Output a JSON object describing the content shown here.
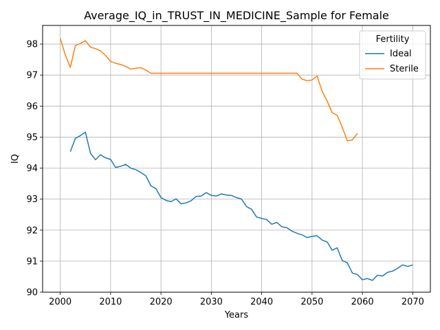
{
  "chart_data": {
    "type": "line",
    "title": "Average_IQ_in_TRUST_IN_MEDICINE_Sample for Female",
    "xlabel": "Years",
    "ylabel": "IQ",
    "xlim": [
      1996.5,
      2073.5
    ],
    "ylim": [
      90,
      98.6
    ],
    "x_ticks": [
      2000,
      2010,
      2020,
      2030,
      2040,
      2050,
      2060,
      2070
    ],
    "y_ticks": [
      90,
      91,
      92,
      93,
      94,
      95,
      96,
      97,
      98
    ],
    "grid": true,
    "legend": {
      "title": "Fertility",
      "placement": "top-right"
    },
    "series": [
      {
        "name": "Ideal",
        "color": "#1f77b4",
        "x": [
          2002,
          2003,
          2004,
          2005,
          2006,
          2007,
          2008,
          2009,
          2010,
          2011,
          2012,
          2013,
          2014,
          2015,
          2016,
          2017,
          2018,
          2019,
          2020,
          2021,
          2022,
          2023,
          2024,
          2025,
          2026,
          2027,
          2028,
          2029,
          2030,
          2031,
          2032,
          2033,
          2034,
          2035,
          2036,
          2037,
          2038,
          2039,
          2040,
          2041,
          2042,
          2043,
          2044,
          2045,
          2046,
          2047,
          2048,
          2049,
          2050,
          2051,
          2052,
          2053,
          2054,
          2055,
          2056,
          2057,
          2058,
          2059,
          2060,
          2061,
          2062,
          2063,
          2064,
          2065,
          2066,
          2067,
          2068,
          2069,
          2070
        ],
        "values": [
          94.53,
          94.96,
          95.05,
          95.16,
          94.48,
          94.27,
          94.43,
          94.33,
          94.28,
          94.02,
          94.06,
          94.12,
          94.0,
          93.95,
          93.86,
          93.75,
          93.43,
          93.34,
          93.05,
          92.96,
          92.92,
          93.01,
          92.85,
          92.88,
          92.95,
          93.09,
          93.1,
          93.21,
          93.12,
          93.1,
          93.17,
          93.13,
          93.12,
          93.05,
          93.0,
          92.76,
          92.67,
          92.42,
          92.38,
          92.34,
          92.19,
          92.25,
          92.11,
          92.08,
          91.97,
          91.9,
          91.85,
          91.76,
          91.8,
          91.82,
          91.68,
          91.62,
          91.35,
          91.43,
          91.02,
          90.95,
          90.62,
          90.57,
          90.4,
          90.44,
          90.38,
          90.55,
          90.52,
          90.64,
          90.68,
          90.77,
          90.88,
          90.83,
          90.88
        ]
      },
      {
        "name": "Sterile",
        "color": "#ff7f0e",
        "x": [
          2000,
          2001,
          2002,
          2003,
          2004,
          2005,
          2006,
          2007,
          2008,
          2009,
          2010,
          2011,
          2012,
          2013,
          2014,
          2015,
          2016,
          2017,
          2018,
          2019,
          2020,
          2021,
          2022,
          2023,
          2024,
          2025,
          2026,
          2027,
          2028,
          2029,
          2030,
          2031,
          2032,
          2033,
          2034,
          2035,
          2036,
          2037,
          2038,
          2039,
          2040,
          2041,
          2042,
          2043,
          2044,
          2045,
          2046,
          2047,
          2048,
          2049,
          2050,
          2051,
          2052,
          2053,
          2054,
          2055,
          2056,
          2057,
          2058,
          2059
        ],
        "values": [
          98.18,
          97.65,
          97.25,
          97.95,
          98.02,
          98.11,
          97.9,
          97.85,
          97.78,
          97.63,
          97.44,
          97.38,
          97.34,
          97.28,
          97.19,
          97.22,
          97.24,
          97.16,
          97.06,
          97.06,
          97.06,
          97.06,
          97.06,
          97.06,
          97.06,
          97.06,
          97.06,
          97.06,
          97.06,
          97.06,
          97.06,
          97.06,
          97.06,
          97.06,
          97.06,
          97.06,
          97.06,
          97.06,
          97.06,
          97.06,
          97.06,
          97.06,
          97.06,
          97.06,
          97.06,
          97.06,
          97.06,
          97.06,
          96.87,
          96.82,
          96.84,
          96.97,
          96.48,
          96.16,
          95.79,
          95.7,
          95.32,
          94.88,
          94.91,
          95.12
        ]
      }
    ]
  }
}
